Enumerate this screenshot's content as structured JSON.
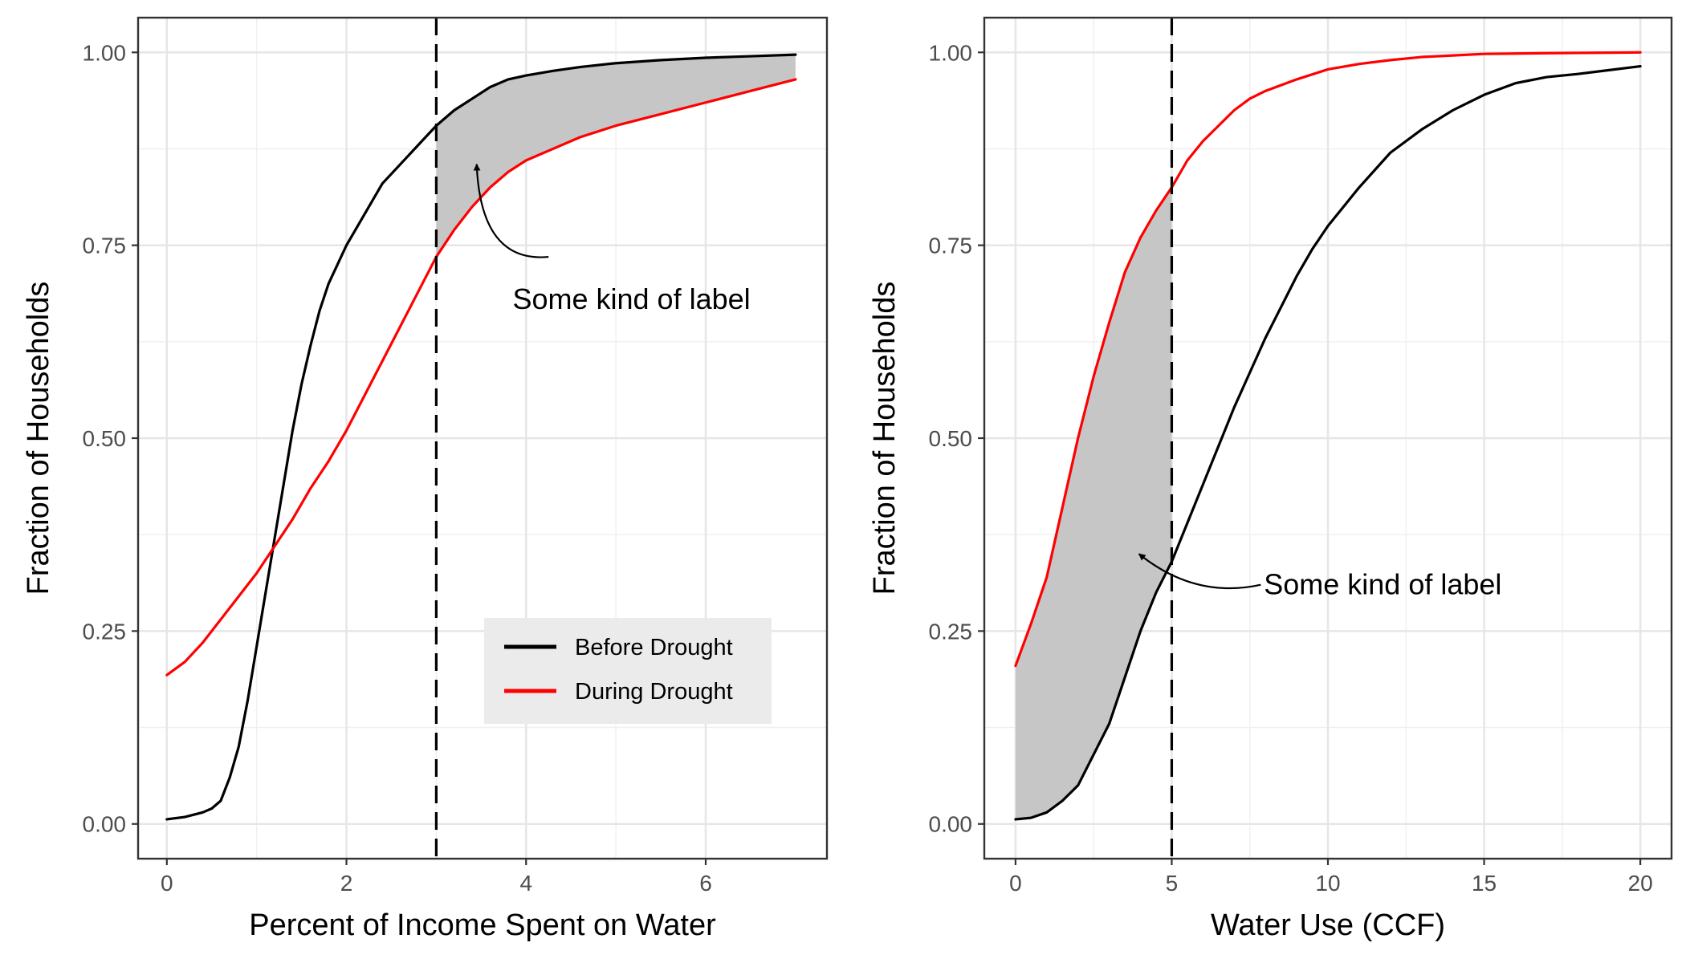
{
  "chart_data": [
    {
      "type": "line",
      "xlabel": "Percent of Income Spent on Water",
      "ylabel": "Fraction of Households",
      "xlim": [
        -0.32,
        7.35
      ],
      "ylim": [
        -0.045,
        1.045
      ],
      "x_ticks": [
        0,
        2,
        4,
        6
      ],
      "x_tick_labels": [
        "0",
        "2",
        "4",
        "6"
      ],
      "y_ticks": [
        0,
        0.25,
        0.5,
        0.75,
        1
      ],
      "y_tick_labels": [
        "0.00",
        "0.25",
        "0.50",
        "0.75",
        "1.00"
      ],
      "grid": true,
      "series": [
        {
          "name": "Before Drought",
          "color": "#000000",
          "x": [
            0,
            0.2,
            0.4,
            0.5,
            0.6,
            0.7,
            0.8,
            0.9,
            1.0,
            1.1,
            1.2,
            1.3,
            1.4,
            1.5,
            1.6,
            1.7,
            1.8,
            1.9,
            2.0,
            2.2,
            2.4,
            2.6,
            2.8,
            3.0,
            3.2,
            3.4,
            3.6,
            3.8,
            4.0,
            4.3,
            4.6,
            5.0,
            5.5,
            6.0,
            6.5,
            7.0
          ],
          "y": [
            0.006,
            0.009,
            0.015,
            0.02,
            0.03,
            0.06,
            0.1,
            0.16,
            0.23,
            0.3,
            0.37,
            0.44,
            0.51,
            0.57,
            0.62,
            0.665,
            0.7,
            0.725,
            0.75,
            0.79,
            0.83,
            0.855,
            0.88,
            0.905,
            0.925,
            0.94,
            0.955,
            0.965,
            0.97,
            0.976,
            0.981,
            0.986,
            0.99,
            0.993,
            0.995,
            0.997
          ]
        },
        {
          "name": "During Drought",
          "color": "#ff0000",
          "x": [
            0,
            0.2,
            0.4,
            0.6,
            0.8,
            1.0,
            1.2,
            1.4,
            1.6,
            1.8,
            2.0,
            2.2,
            2.4,
            2.6,
            2.8,
            3.0,
            3.2,
            3.4,
            3.6,
            3.8,
            4.0,
            4.3,
            4.6,
            5.0,
            5.5,
            6.0,
            6.5,
            7.0
          ],
          "y": [
            0.193,
            0.21,
            0.235,
            0.265,
            0.295,
            0.325,
            0.36,
            0.395,
            0.435,
            0.47,
            0.51,
            0.555,
            0.6,
            0.645,
            0.69,
            0.735,
            0.77,
            0.8,
            0.825,
            0.845,
            0.86,
            0.875,
            0.89,
            0.905,
            0.92,
            0.935,
            0.95,
            0.965
          ]
        }
      ],
      "shaded_region": {
        "x_from": 3,
        "x_to": 7,
        "between": [
          "Before Drought",
          "During Drought"
        ]
      },
      "vline": {
        "x": 3,
        "style": "dashed"
      },
      "annotation": {
        "text": "Some kind of label",
        "text_x": 3.85,
        "text_y": 0.68,
        "arrow_from_x": 4.25,
        "arrow_from_y": 0.735,
        "arrow_to_x": 3.45,
        "arrow_to_y": 0.855
      },
      "legend": {
        "placement": "bottom-right",
        "entries": [
          {
            "label": "Before Drought",
            "color": "#000000"
          },
          {
            "label": "During Drought",
            "color": "#ff0000"
          }
        ]
      }
    },
    {
      "type": "line",
      "xlabel": "Water Use (CCF)",
      "ylabel": "Fraction of Households",
      "xlim": [
        -1,
        21
      ],
      "ylim": [
        -0.045,
        1.045
      ],
      "x_ticks": [
        0,
        5,
        10,
        15,
        20
      ],
      "x_tick_labels": [
        "0",
        "5",
        "10",
        "15",
        "20"
      ],
      "y_ticks": [
        0,
        0.25,
        0.5,
        0.75,
        1
      ],
      "y_tick_labels": [
        "0.00",
        "0.25",
        "0.50",
        "0.75",
        "1.00"
      ],
      "grid": true,
      "series": [
        {
          "name": "Before Drought",
          "color": "#000000",
          "x": [
            0,
            0.5,
            1.0,
            1.5,
            2.0,
            2.5,
            3.0,
            3.5,
            4.0,
            4.5,
            5.0,
            5.5,
            6.0,
            6.5,
            7.0,
            7.5,
            8.0,
            8.5,
            9.0,
            9.5,
            10.0,
            11.0,
            12.0,
            13.0,
            14.0,
            15.0,
            16.0,
            17.0,
            18.0,
            19.0,
            20.0
          ],
          "y": [
            0.006,
            0.008,
            0.015,
            0.03,
            0.05,
            0.09,
            0.13,
            0.19,
            0.25,
            0.3,
            0.34,
            0.39,
            0.44,
            0.49,
            0.54,
            0.585,
            0.63,
            0.67,
            0.71,
            0.745,
            0.775,
            0.825,
            0.87,
            0.9,
            0.925,
            0.945,
            0.96,
            0.968,
            0.972,
            0.977,
            0.982
          ]
        },
        {
          "name": "During Drought",
          "color": "#ff0000",
          "x": [
            0,
            0.5,
            1.0,
            1.5,
            2.0,
            2.5,
            3.0,
            3.5,
            4.0,
            4.5,
            5.0,
            5.5,
            6.0,
            6.5,
            7.0,
            7.5,
            8.0,
            9.0,
            10.0,
            11.0,
            12.0,
            13.0,
            14.0,
            15.0,
            17.0,
            20.0
          ],
          "y": [
            0.205,
            0.26,
            0.32,
            0.41,
            0.5,
            0.58,
            0.65,
            0.715,
            0.76,
            0.795,
            0.825,
            0.86,
            0.885,
            0.905,
            0.925,
            0.94,
            0.95,
            0.965,
            0.978,
            0.985,
            0.99,
            0.994,
            0.996,
            0.998,
            0.999,
            1.0
          ]
        }
      ],
      "shaded_region": {
        "x_from": 0,
        "x_to": 5,
        "between": [
          "During Drought",
          "Before Drought"
        ]
      },
      "vline": {
        "x": 5,
        "style": "dashed"
      },
      "annotation": {
        "text": "Some kind of label",
        "text_x": 7.95,
        "text_y": 0.31,
        "arrow_from_x": 7.85,
        "arrow_from_y": 0.31,
        "arrow_to_x": 3.95,
        "arrow_to_y": 0.35
      }
    }
  ]
}
